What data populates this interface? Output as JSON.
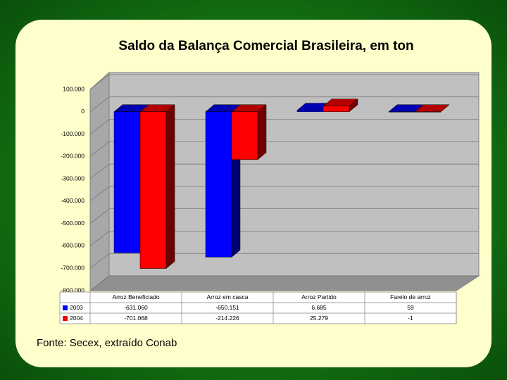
{
  "chart_data": {
    "type": "bar3d",
    "title": "Saldo da Balança Comercial Brasileira, em ton",
    "source": "Fonte: Secex, extraído Conab",
    "categories": [
      "Arroz Beneficiado",
      "Arroz em casca",
      "Arroz Partido",
      "Farelo de arroz"
    ],
    "series": [
      {
        "name": "2003",
        "color": "#0000ff",
        "values": [
          -631060,
          -650151,
          6685,
          59
        ],
        "value_labels": [
          "-631.060",
          "-650.151",
          "6.685",
          "59"
        ]
      },
      {
        "name": "2004",
        "color": "#ff0000",
        "values": [
          -701068,
          -214226,
          25279,
          -1
        ],
        "value_labels": [
          "-701.068",
          "-214.226",
          "25.279",
          "-1"
        ]
      }
    ],
    "ylim": [
      -800000,
      100000
    ],
    "yticks": [
      {
        "value": 100000,
        "label": "100.000"
      },
      0,
      {
        "value": -100000,
        "label": "-100.000"
      },
      {
        "value": -200000,
        "label": "-200.000"
      },
      {
        "value": -300000,
        "label": "-300.000"
      },
      {
        "value": -400000,
        "label": "-400.000"
      },
      {
        "value": -500000,
        "label": "-500.000"
      },
      {
        "value": -600000,
        "label": "-600.000"
      },
      {
        "value": -700000,
        "label": "-700.000"
      },
      {
        "value": -800000,
        "label": "-800.000"
      }
    ],
    "grid": true
  }
}
